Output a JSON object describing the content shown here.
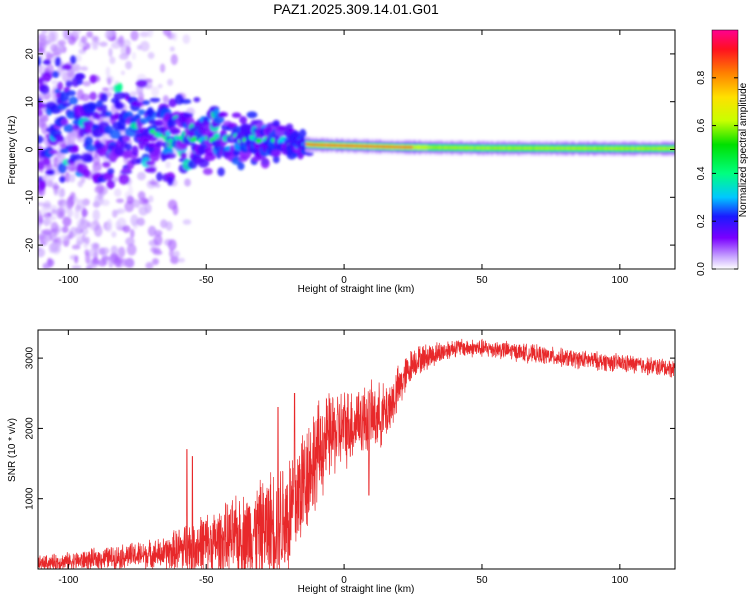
{
  "title": "PAZ1.2025.309.14.01.G01",
  "chart_data": [
    {
      "type": "heatmap",
      "xlabel": "Height of straight line (km)",
      "ylabel": "Frequency (Hz)",
      "xlim": [
        -111,
        120
      ],
      "ylim": [
        -25,
        25
      ],
      "xticks": [
        -100,
        -50,
        0,
        50,
        100
      ],
      "yticks": [
        -20,
        -10,
        0,
        10,
        20
      ],
      "colorbar": {
        "label": "Normalized spectral amplitude",
        "range": [
          0,
          1
        ],
        "ticks": [
          0.0,
          0.2,
          0.4,
          0.6,
          0.8
        ]
      },
      "ridge": [
        {
          "x": -110,
          "y": 6
        },
        {
          "x": -95,
          "y": 5
        },
        {
          "x": -80,
          "y": 4
        },
        {
          "x": -65,
          "y": 3
        },
        {
          "x": -50,
          "y": 2.5
        },
        {
          "x": -35,
          "y": 2
        },
        {
          "x": -20,
          "y": 1.5
        },
        {
          "x": -12,
          "y": 1
        },
        {
          "x": 0,
          "y": 0.8
        },
        {
          "x": 20,
          "y": 0.5
        },
        {
          "x": 50,
          "y": 0.3
        },
        {
          "x": 100,
          "y": 0.2
        },
        {
          "x": 120,
          "y": 0.2
        }
      ]
    },
    {
      "type": "line",
      "xlabel": "Height of straight line (km)",
      "ylabel": "SNR (10 * v/v)",
      "xlim": [
        -111,
        120
      ],
      "ylim": [
        0,
        3400
      ],
      "xticks": [
        -100,
        -50,
        0,
        50,
        100
      ],
      "yticks": [
        1000,
        2000,
        3000
      ],
      "color": "#e8282a",
      "envelope": [
        {
          "x": -111,
          "mean": 80,
          "amp": 120
        },
        {
          "x": -95,
          "mean": 120,
          "amp": 160
        },
        {
          "x": -80,
          "mean": 180,
          "amp": 200
        },
        {
          "x": -65,
          "mean": 220,
          "amp": 260
        },
        {
          "x": -55,
          "mean": 320,
          "amp": 500
        },
        {
          "x": -45,
          "mean": 380,
          "amp": 550
        },
        {
          "x": -30,
          "mean": 550,
          "amp": 800
        },
        {
          "x": -20,
          "mean": 750,
          "amp": 1100
        },
        {
          "x": -12,
          "mean": 1500,
          "amp": 900
        },
        {
          "x": -5,
          "mean": 1900,
          "amp": 700
        },
        {
          "x": 5,
          "mean": 2100,
          "amp": 600
        },
        {
          "x": 15,
          "mean": 2200,
          "amp": 500
        },
        {
          "x": 25,
          "mean": 2950,
          "amp": 250
        },
        {
          "x": 40,
          "mean": 3150,
          "amp": 150
        },
        {
          "x": 55,
          "mean": 3130,
          "amp": 150
        },
        {
          "x": 80,
          "mean": 3000,
          "amp": 150
        },
        {
          "x": 100,
          "mean": 2930,
          "amp": 150
        },
        {
          "x": 120,
          "mean": 2850,
          "amp": 150
        }
      ],
      "spikes": [
        {
          "x": -57,
          "y": 1700
        },
        {
          "x": -55,
          "y": 1600
        },
        {
          "x": -24,
          "y": 2300
        },
        {
          "x": -18,
          "y": 2500
        },
        {
          "x": 5,
          "y": 2450
        },
        {
          "x": 9,
          "y": 1050
        }
      ]
    }
  ]
}
